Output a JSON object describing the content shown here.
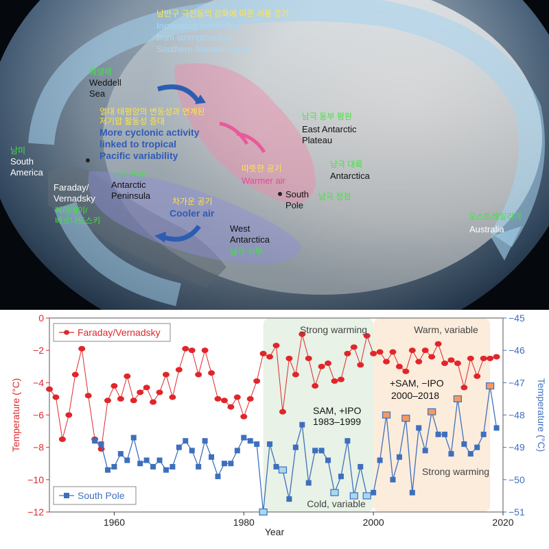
{
  "map": {
    "westerlies": {
      "ko": "남반구 극진동의 강화에 따른 서풍 증가",
      "en_lines": [
        "Increasing westerlies",
        "from strengthening",
        "Southern Annular Mode"
      ]
    },
    "weddell": {
      "ko": "웨델해",
      "en_lines": [
        "Weddell",
        "Sea"
      ]
    },
    "pacific": {
      "ko_lines": [
        "열대 태평양의 변동성과 연계된",
        "저기압 활동성 증대"
      ],
      "en_lines": [
        "More cyclonic activity",
        "linked to tropical",
        "Pacific variability"
      ]
    },
    "east_plateau": {
      "ko": "남극 동부 평원",
      "en_lines": [
        "East Antarctic",
        "Plateau"
      ]
    },
    "south_america": {
      "ko": "남미",
      "en_lines": [
        "South",
        "America"
      ]
    },
    "warmer": {
      "ko": "따뜻한 공기",
      "en": "Warmer air"
    },
    "antarctica": {
      "ko": "남극 대륙",
      "en": "Antarctica"
    },
    "peninsula": {
      "ko": "남극 반도",
      "en_lines": [
        "Antarctic",
        "Peninsula"
      ]
    },
    "faraday": {
      "en_lines": [
        "Faraday/",
        "Vernadsky"
      ],
      "ko_lines": [
        "페러데이/",
        "베르나드스키"
      ]
    },
    "south_pole": {
      "en_lines": [
        "South",
        "Pole"
      ],
      "ko": "남극 정점"
    },
    "cooler": {
      "ko": "차가운 공기",
      "en": "Cooler air"
    },
    "west_antarctica": {
      "en_lines": [
        "West",
        "Antarctica"
      ],
      "ko": "남극 서부"
    },
    "australia": {
      "ko": "오스트레일리아",
      "en": "Australia"
    }
  },
  "colors": {
    "faraday": "#e0262a",
    "south_pole": "#3e6fbd",
    "green_band": "#e8f2e6",
    "orange_band": "#fbecdc"
  },
  "chart_data": {
    "type": "line",
    "xlabel": "Year",
    "ylabel_left": "Temperature (°C)",
    "ylabel_right": "Temperature (°C)",
    "xlim": [
      1950,
      2020
    ],
    "ylim_left": [
      -12,
      0
    ],
    "ylim_right": [
      -51,
      -45
    ],
    "x_ticks": [
      1960,
      1980,
      2000,
      2020
    ],
    "y_ticks_left": [
      0,
      -2,
      -4,
      -6,
      -8,
      -10,
      -12
    ],
    "y_ticks_left_labels": [
      "0",
      "−2",
      "−4",
      "−6",
      "−8",
      "−10",
      "−12"
    ],
    "y_ticks_right": [
      -45,
      -46,
      -47,
      -48,
      -49,
      -50,
      -51
    ],
    "y_ticks_right_labels": [
      "−45",
      "−46",
      "−47",
      "−48",
      "−49",
      "−50",
      "−51"
    ],
    "series": [
      {
        "name": "Faraday/Vernadsky",
        "axis": "left",
        "color": "#e0262a",
        "marker": "circle",
        "x": [
          1950,
          1951,
          1952,
          1953,
          1954,
          1955,
          1956,
          1957,
          1958,
          1959,
          1960,
          1961,
          1962,
          1963,
          1964,
          1965,
          1966,
          1967,
          1968,
          1969,
          1970,
          1971,
          1972,
          1973,
          1974,
          1975,
          1976,
          1977,
          1978,
          1979,
          1980,
          1981,
          1982,
          1983,
          1984,
          1985,
          1986,
          1987,
          1988,
          1989,
          1990,
          1991,
          1992,
          1993,
          1994,
          1995,
          1996,
          1997,
          1998,
          1999,
          2000,
          2001,
          2002,
          2003,
          2004,
          2005,
          2006,
          2007,
          2008,
          2009,
          2010,
          2011,
          2012,
          2013,
          2014,
          2015,
          2016,
          2017,
          2018,
          2019
        ],
        "values": [
          -4.4,
          -4.9,
          -7.5,
          -6.0,
          -3.5,
          -1.9,
          -4.8,
          -7.5,
          -8.1,
          -5.1,
          -4.2,
          -5.0,
          -3.6,
          -5.1,
          -4.6,
          -4.3,
          -5.2,
          -4.6,
          -3.5,
          -4.9,
          -3.2,
          -1.9,
          -2.0,
          -3.5,
          -2.0,
          -3.4,
          -5.0,
          -5.1,
          -5.5,
          -4.9,
          -6.1,
          -5.0,
          -3.9,
          -2.2,
          -2.4,
          -1.7,
          -5.8,
          -2.5,
          -3.5,
          -1.0,
          -2.5,
          -4.2,
          -3.0,
          -2.8,
          -3.9,
          -3.8,
          -2.2,
          -1.8,
          -2.9,
          -1.1,
          -2.2,
          -2.1,
          -2.7,
          -2.1,
          -3.0,
          -3.3,
          -2.0,
          -2.7,
          -2.0,
          -2.4,
          -1.6,
          -2.8,
          -2.6,
          -2.8,
          -4.3,
          -2.5,
          -3.6,
          -2.5,
          -2.5,
          -2.4
        ]
      },
      {
        "name": "South Pole",
        "axis": "right",
        "color": "#3e6fbd",
        "marker": "square",
        "x": [
          1957,
          1958,
          1959,
          1960,
          1961,
          1962,
          1963,
          1964,
          1965,
          1966,
          1967,
          1968,
          1969,
          1970,
          1971,
          1972,
          1973,
          1974,
          1975,
          1976,
          1977,
          1978,
          1979,
          1980,
          1981,
          1982,
          1983,
          1984,
          1985,
          1986,
          1987,
          1988,
          1989,
          1990,
          1991,
          1992,
          1993,
          1994,
          1995,
          1996,
          1997,
          1998,
          1999,
          2000,
          2001,
          2002,
          2003,
          2004,
          2005,
          2006,
          2007,
          2008,
          2009,
          2010,
          2011,
          2012,
          2013,
          2014,
          2015,
          2016,
          2017,
          2018,
          2019
        ],
        "values": [
          -48.8,
          -48.9,
          -49.7,
          -49.6,
          -49.2,
          -49.4,
          -48.7,
          -49.5,
          -49.4,
          -49.6,
          -49.4,
          -49.7,
          -49.6,
          -49.0,
          -48.8,
          -49.1,
          -49.6,
          -48.8,
          -49.3,
          -49.9,
          -49.5,
          -49.5,
          -49.1,
          -48.7,
          -48.8,
          -48.9,
          -51.0,
          -48.9,
          -49.6,
          -49.7,
          -50.6,
          -49.0,
          -48.3,
          -50.1,
          -49.1,
          -49.1,
          -49.4,
          -50.4,
          -49.9,
          -48.8,
          -50.5,
          -49.6,
          -50.5,
          -50.4,
          -49.4,
          -48.0,
          -50.0,
          -49.3,
          -48.1,
          -50.4,
          -48.4,
          -49.1,
          -47.9,
          -48.6,
          -48.6,
          -49.2,
          -47.5,
          -48.9,
          -49.2,
          -49.0,
          -48.6,
          -47.1,
          -48.4
        ],
        "highlighted_x": [
          1983,
          1986,
          1994,
          1997,
          1999,
          2002,
          2005,
          2009,
          2013,
          2018
        ]
      }
    ],
    "shaded_periods": [
      {
        "x_start": 1983,
        "x_end": 2000,
        "label_top": "Strong warming",
        "label_bottom": "Cold, variable",
        "period_lines": [
          "SAM, +IPO",
          "1983–1999"
        ]
      },
      {
        "x_start": 2000,
        "x_end": 2018,
        "label_top": "Warm, variable",
        "label_bottom": "Strong warming",
        "period_lines": [
          "+SAM, −IPO",
          "2000–2018"
        ]
      }
    ],
    "legend_position": "top-left / bottom-left"
  }
}
